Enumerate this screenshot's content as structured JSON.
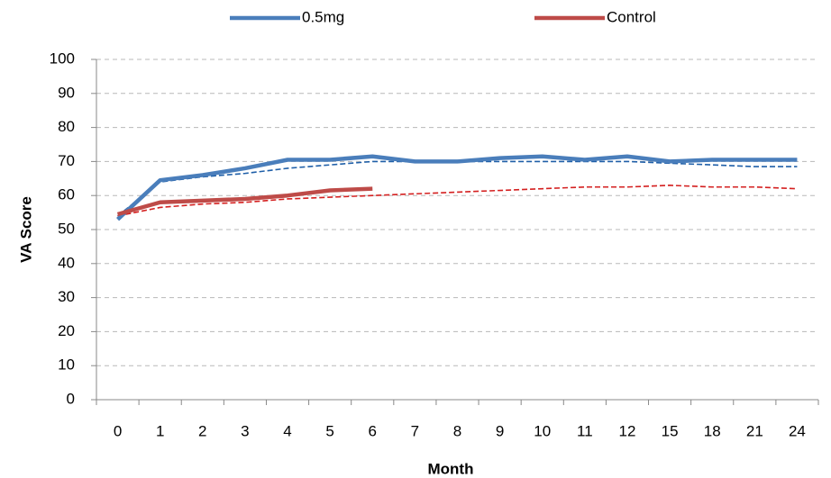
{
  "chart_data": {
    "type": "line",
    "x_label": "Month",
    "y_label": "VA Score",
    "categories": [
      "0",
      "1",
      "2",
      "3",
      "4",
      "5",
      "6",
      "7",
      "8",
      "9",
      "10",
      "11",
      "12",
      "15",
      "18",
      "21",
      "24"
    ],
    "series": [
      {
        "name": "0.5mg",
        "color": "#4a7ebb",
        "values": [
          53,
          64.5,
          66,
          68,
          70.5,
          70.5,
          71.5,
          70,
          70,
          71,
          71.5,
          70.5,
          71.5,
          70,
          70.5,
          70.5,
          70.5
        ]
      },
      {
        "name": "Control",
        "color": "#be4b48",
        "values": [
          54.5,
          58,
          58.5,
          59,
          60,
          61.5,
          62,
          null,
          null,
          null,
          null,
          null,
          null,
          null,
          null,
          null,
          null
        ]
      },
      {
        "color": "#1f5fa8",
        "dashed": true,
        "values": [
          54,
          64,
          65.5,
          66.5,
          68,
          69,
          70,
          70,
          70,
          70,
          70,
          70,
          70,
          69.5,
          69,
          68.5,
          68.5
        ]
      },
      {
        "color": "#d42020",
        "dashed": true,
        "values": [
          54,
          56.5,
          57.5,
          58,
          59,
          59.5,
          60,
          60.5,
          61,
          61.5,
          62,
          62.5,
          62.5,
          63,
          62.5,
          62.5,
          62
        ]
      }
    ],
    "ylim": [
      0,
      100
    ],
    "yticks": [
      0,
      10,
      20,
      30,
      40,
      50,
      60,
      70,
      80,
      90,
      100
    ],
    "grid": true,
    "legend": "top"
  }
}
